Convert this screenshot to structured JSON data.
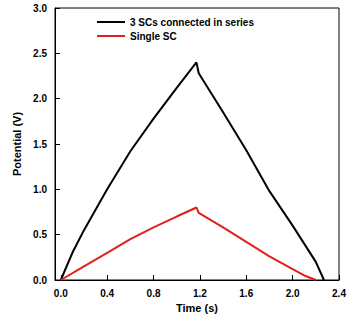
{
  "chart_data": {
    "type": "line",
    "x_label": "Time (s)",
    "y_label": "Potential (V)",
    "xlim": [
      -0.05,
      2.4
    ],
    "xticks": [
      {
        "value": 0,
        "label": "0.0"
      },
      0.4,
      0.8,
      1.2,
      1.6,
      {
        "value": 2,
        "label": "2.0"
      },
      2.4
    ],
    "ylim": [
      0,
      3
    ],
    "yticks": [
      {
        "value": 0,
        "label": "0.0"
      },
      0.5,
      {
        "value": 1,
        "label": "1.0"
      },
      1.5,
      {
        "value": 2,
        "label": "2.0"
      },
      2.5,
      {
        "value": 3,
        "label": "3.0"
      }
    ],
    "legend": "upper left",
    "grid": false,
    "series": [
      {
        "name": "3 SCs connected in series",
        "color": "#000000",
        "x": [
          0,
          0.1,
          0.2,
          0.4,
          0.6,
          0.8,
          1.0,
          1.17,
          1.19,
          1.4,
          1.6,
          1.8,
          2.0,
          2.2,
          2.27
        ],
        "values": [
          0,
          0.3,
          0.55,
          1.0,
          1.42,
          1.78,
          2.12,
          2.4,
          2.28,
          1.85,
          1.43,
          0.98,
          0.6,
          0.2,
          0
        ]
      },
      {
        "name": "Single SC",
        "color": "#e0201b",
        "x": [
          0,
          0.2,
          0.4,
          0.6,
          0.8,
          1.0,
          1.17,
          1.19,
          1.4,
          1.6,
          1.8,
          2.0,
          2.1,
          2.2
        ],
        "values": [
          0,
          0.15,
          0.3,
          0.45,
          0.58,
          0.7,
          0.8,
          0.74,
          0.58,
          0.42,
          0.26,
          0.12,
          0.05,
          0
        ]
      }
    ]
  }
}
